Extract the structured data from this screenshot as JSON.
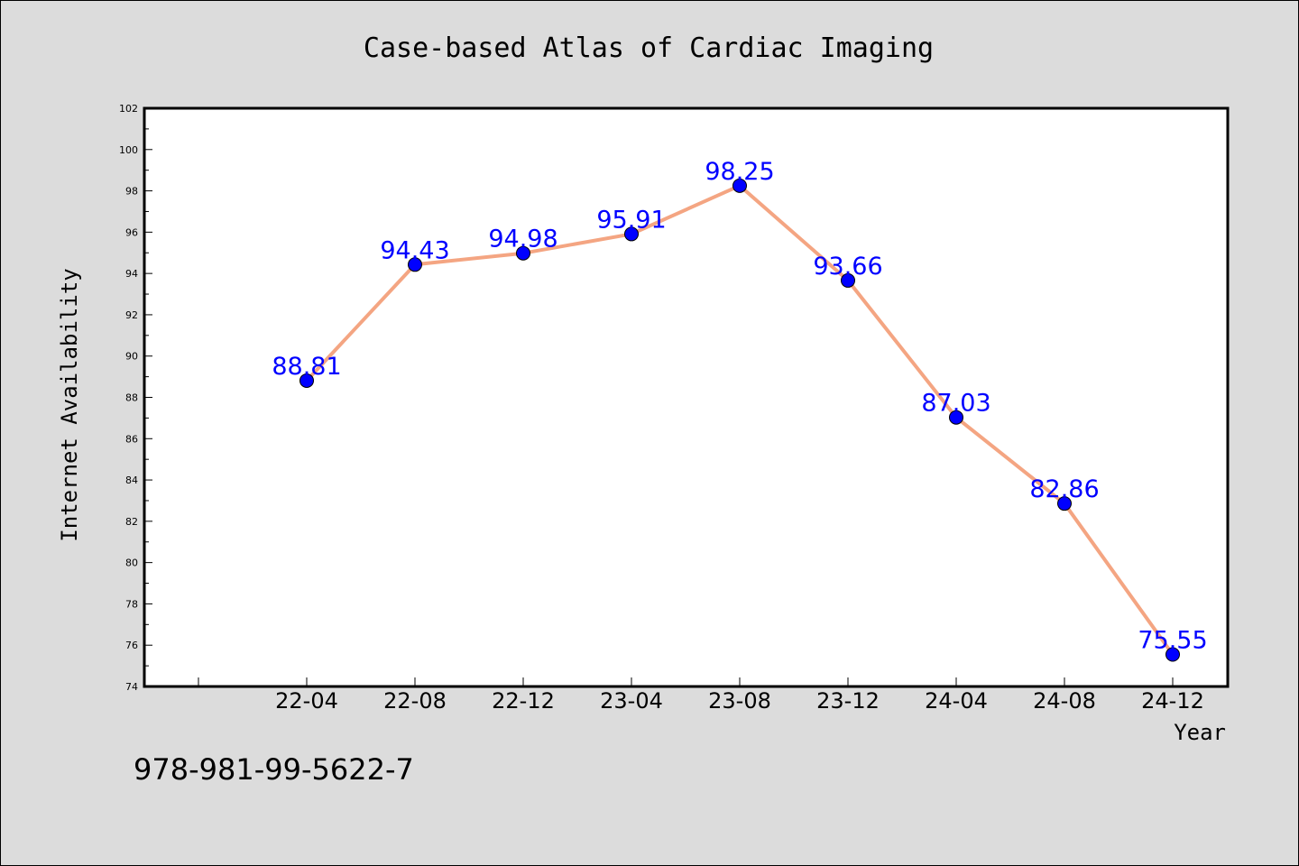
{
  "chart_data": {
    "type": "line",
    "title": "Case-based Atlas of Cardiac Imaging",
    "xlabel": "Year",
    "ylabel": "Internet Availability",
    "categories": [
      "22-04",
      "22-08",
      "22-12",
      "23-04",
      "23-08",
      "23-12",
      "24-04",
      "24-08",
      "24-12"
    ],
    "series": [
      {
        "values": [
          88.81,
          94.43,
          94.98,
          95.91,
          98.25,
          93.66,
          87.03,
          82.86,
          75.55
        ],
        "labels": [
          "88.81",
          "94.43",
          "94.98",
          "95.91",
          "98.25",
          "93.66",
          "87.03",
          "82.86",
          "75.55"
        ]
      }
    ],
    "ylim": [
      74,
      102
    ],
    "yticks": [
      74,
      76,
      78,
      80,
      82,
      84,
      86,
      88,
      90,
      92,
      94,
      96,
      98,
      100,
      102
    ],
    "ytick_labels": [
      "74",
      "76",
      "78",
      "80",
      "82",
      "84",
      "86",
      "88",
      "90",
      "92",
      "94",
      "96",
      "98",
      "100",
      "102"
    ],
    "grid": false,
    "colors": {
      "line": "#f4a582",
      "marker": "#0000ff",
      "label": "#0000ff",
      "frame": "#000000",
      "plot_bg": "#ffffff",
      "page_bg": "#dcdcdc"
    }
  },
  "footer": {
    "isbn": "978-981-99-5622-7"
  }
}
